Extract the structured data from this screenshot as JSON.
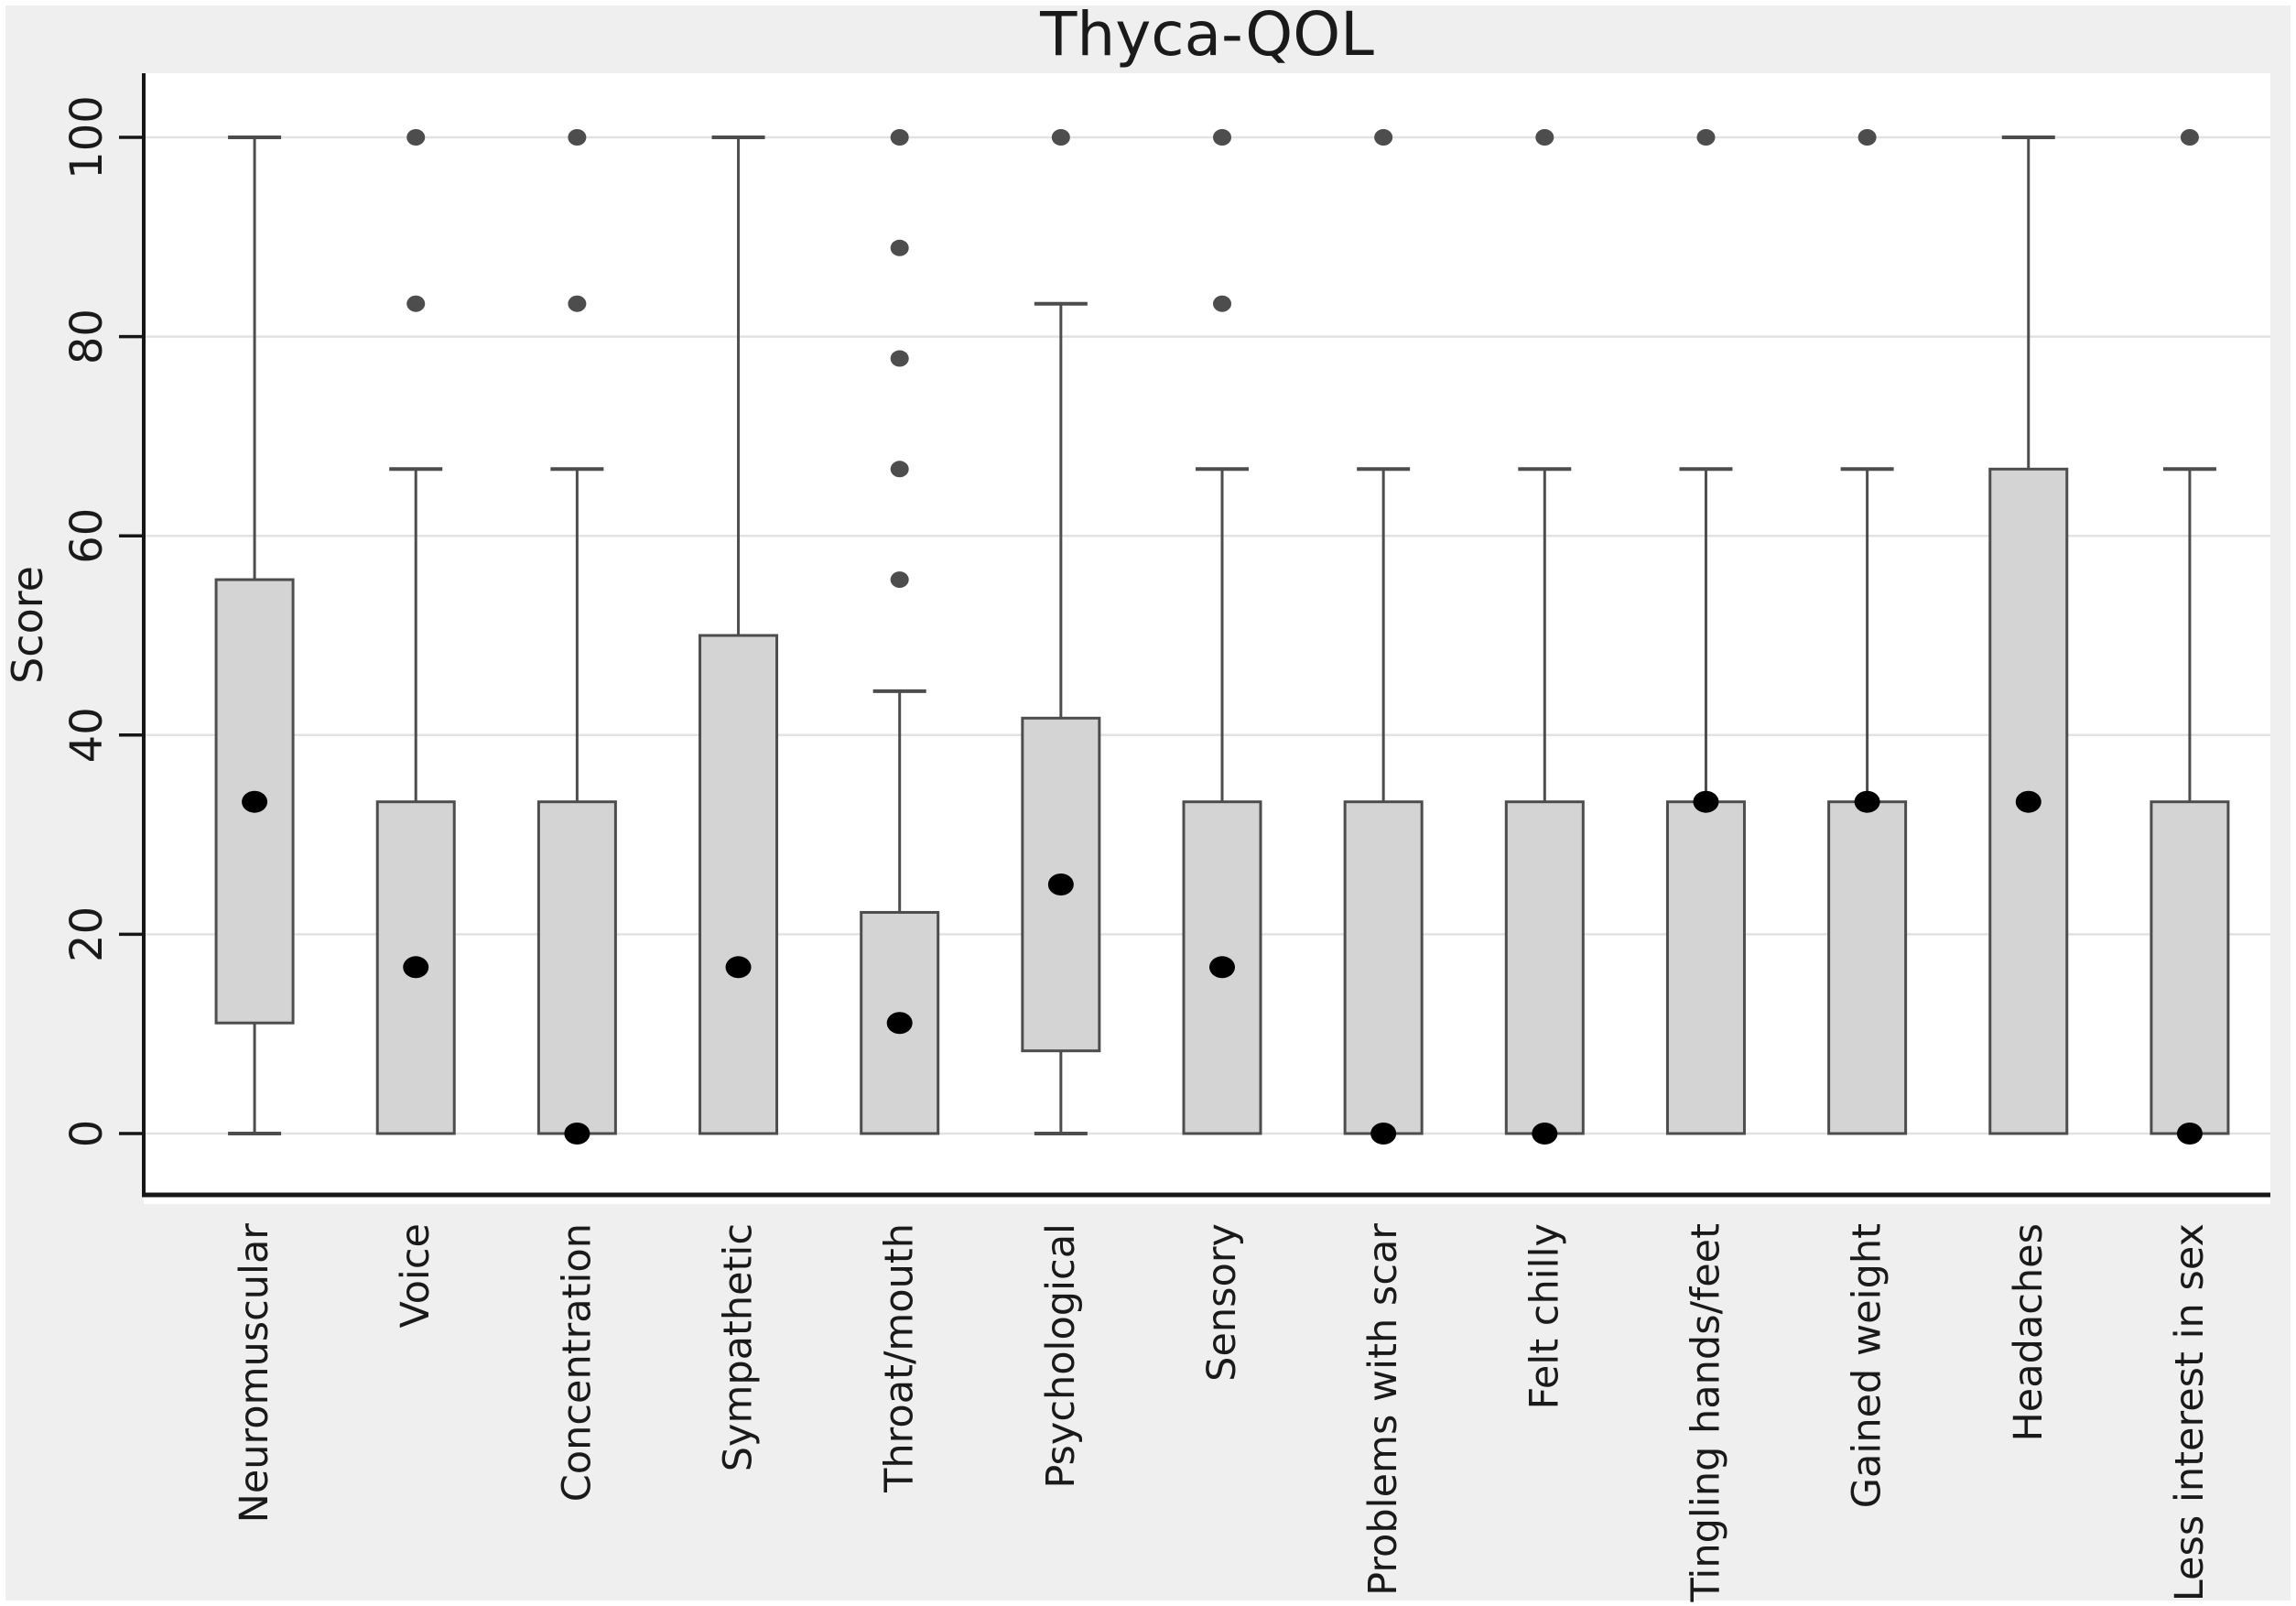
{
  "chart_data": {
    "type": "boxplot",
    "title": "Thyca-QOL",
    "ylabel": "Score",
    "ylim": [
      0,
      100
    ],
    "yticks": [
      0,
      20,
      40,
      60,
      80,
      100
    ],
    "grid": true,
    "legend": false,
    "orientation": "vertical",
    "tick_label_rotation": -90,
    "category_label_rotation": -90,
    "boxes": [
      {
        "category": "Neuromuscular",
        "q1": 11.1,
        "q3": 55.6,
        "whisker_low": 0,
        "whisker_high": 100,
        "median_dot": 33.3,
        "outliers": []
      },
      {
        "category": "Voice",
        "q1": 0,
        "q3": 33.3,
        "whisker_low": 0,
        "whisker_high": 66.7,
        "median_dot": 16.7,
        "outliers": [
          83.3,
          100
        ]
      },
      {
        "category": "Concentration",
        "q1": 0,
        "q3": 33.3,
        "whisker_low": 0,
        "whisker_high": 66.7,
        "median_dot": 0,
        "outliers": [
          83.3,
          100
        ]
      },
      {
        "category": "Sympathetic",
        "q1": 0,
        "q3": 50,
        "whisker_low": 0,
        "whisker_high": 100,
        "median_dot": 16.7,
        "outliers": []
      },
      {
        "category": "Throat/mouth",
        "q1": 0,
        "q3": 22.2,
        "whisker_low": 0,
        "whisker_high": 44.4,
        "median_dot": 11.1,
        "outliers": [
          55.6,
          66.7,
          77.8,
          88.9,
          100
        ]
      },
      {
        "category": "Psychological",
        "q1": 8.3,
        "q3": 41.7,
        "whisker_low": 0,
        "whisker_high": 83.3,
        "median_dot": 25,
        "outliers": [
          100
        ]
      },
      {
        "category": "Sensory",
        "q1": 0,
        "q3": 33.3,
        "whisker_low": 0,
        "whisker_high": 66.7,
        "median_dot": 16.7,
        "outliers": [
          83.3,
          100
        ]
      },
      {
        "category": "Problems with scar",
        "q1": 0,
        "q3": 33.3,
        "whisker_low": 0,
        "whisker_high": 66.7,
        "median_dot": 0,
        "outliers": [
          100
        ]
      },
      {
        "category": "Felt chilly",
        "q1": 0,
        "q3": 33.3,
        "whisker_low": 0,
        "whisker_high": 66.7,
        "median_dot": 0,
        "outliers": [
          100
        ]
      },
      {
        "category": "Tingling hands/feet",
        "q1": 0,
        "q3": 33.3,
        "whisker_low": 0,
        "whisker_high": 66.7,
        "median_dot": 33.3,
        "outliers": [
          100
        ]
      },
      {
        "category": "Gained weight",
        "q1": 0,
        "q3": 33.3,
        "whisker_low": 0,
        "whisker_high": 66.7,
        "median_dot": 33.3,
        "outliers": [
          100
        ]
      },
      {
        "category": "Headaches",
        "q1": 0,
        "q3": 66.7,
        "whisker_low": 0,
        "whisker_high": 100,
        "median_dot": 33.3,
        "outliers": []
      },
      {
        "category": "Less interest in sex",
        "q1": 0,
        "q3": 33.3,
        "whisker_low": 0,
        "whisker_high": 66.7,
        "median_dot": 0,
        "outliers": [
          100
        ]
      }
    ],
    "colors": {
      "background": "#efefef",
      "plot_background": "#ffffff",
      "gridline": "#e2e2e2",
      "axis": "#161616",
      "box_fill": "#d4d4d4",
      "box_stroke": "#4d4d4d",
      "whisker": "#4d4d4d",
      "outlier_dot": "#4d4d4d",
      "median_dot": "#000000",
      "text": "#1a1a1a"
    }
  }
}
